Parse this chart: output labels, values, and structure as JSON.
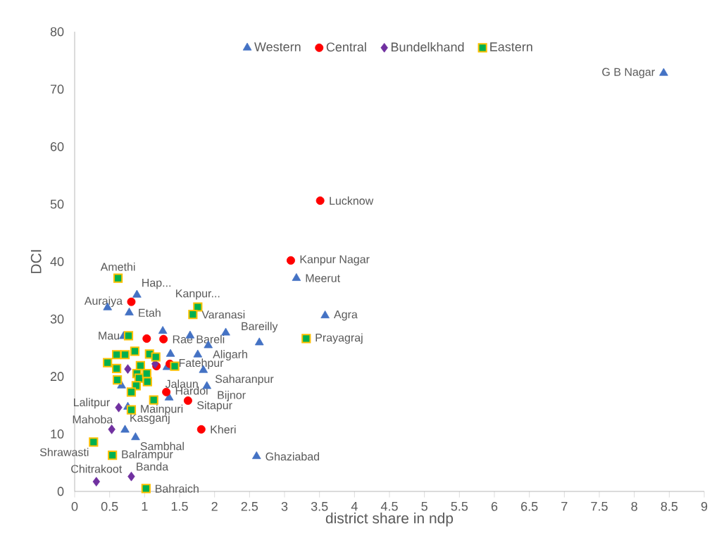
{
  "chart_data": {
    "type": "scatter",
    "xlabel": "district share in ndp",
    "ylabel": "DCI",
    "xlim": [
      0,
      9
    ],
    "ylim": [
      0,
      80
    ],
    "xticks": [
      0,
      0.5,
      1,
      1.5,
      2,
      2.5,
      3,
      3.5,
      4,
      4.5,
      5,
      5.5,
      6,
      6.5,
      7,
      7.5,
      8,
      8.5,
      9
    ],
    "yticks": [
      0,
      10,
      20,
      30,
      40,
      50,
      60,
      70,
      80
    ],
    "legend": "top",
    "series": [
      {
        "name": "Western",
        "color": "#4472c4",
        "marker": "triangle",
        "x": [
          8.42,
          3.17,
          3.58,
          0.89,
          0.47,
          0.78,
          1.91,
          1.84,
          1.89,
          1.35,
          2.6,
          2.64,
          0.72,
          0.87,
          2.16,
          1.76,
          1.37,
          1.26,
          1.65,
          0.7,
          1.32,
          0.67,
          0.76
        ],
        "values": [
          72.8,
          37.1,
          30.6,
          34.2,
          32.0,
          31.1,
          25.4,
          21.1,
          18.3,
          16.3,
          6.1,
          25.9,
          10.7,
          9.4,
          27.6,
          23.8,
          23.9,
          27.9,
          27.1,
          27.0,
          21.6,
          18.4,
          14.7
        ]
      },
      {
        "name": "Central",
        "color": "#ff0000",
        "marker": "circle",
        "x": [
          3.51,
          3.09,
          0.81,
          1.03,
          1.27,
          1.36,
          1.17,
          1.31,
          1.62,
          1.81
        ],
        "values": [
          50.6,
          40.2,
          33.0,
          26.6,
          26.5,
          22.2,
          21.8,
          17.3,
          15.8,
          10.8
        ]
      },
      {
        "name": "Bundelkhand",
        "color": "#7030a0",
        "marker": "diamond",
        "x": [
          0.63,
          0.53,
          0.81,
          0.31,
          0.76,
          1.15
        ],
        "values": [
          14.6,
          10.8,
          2.6,
          1.7,
          21.3,
          22.2
        ]
      },
      {
        "name": "Eastern",
        "color": "#00b050",
        "marker": "square",
        "x": [
          0.62,
          1.76,
          1.69,
          3.31,
          0.77,
          0.54,
          0.27,
          1.02,
          0.81,
          0.6,
          0.72,
          0.86,
          1.07,
          1.16,
          0.47,
          0.6,
          0.61,
          0.94,
          0.89,
          0.92,
          1.03,
          1.04,
          0.88,
          0.81,
          1.13,
          1.43
        ],
        "values": [
          37.1,
          32.1,
          30.8,
          26.6,
          27.1,
          6.3,
          8.6,
          0.5,
          14.2,
          23.8,
          23.8,
          24.4,
          23.9,
          23.4,
          22.4,
          21.4,
          19.4,
          21.9,
          20.5,
          19.7,
          20.5,
          19.1,
          18.4,
          17.3,
          15.9,
          21.8
        ]
      }
    ],
    "annotations": [
      {
        "text": "G B Nagar",
        "x": 8.42,
        "y": 72.8
      },
      {
        "text": "Lucknow",
        "x": 3.51,
        "y": 50.6
      },
      {
        "text": "Kanpur Nagar",
        "x": 3.09,
        "y": 40.2
      },
      {
        "text": "Meerut",
        "x": 3.17,
        "y": 37.1
      },
      {
        "text": "Amethi",
        "x": 0.62,
        "y": 37.1
      },
      {
        "text": "Hap...",
        "x": 0.89,
        "y": 34.2
      },
      {
        "text": "Auraiya",
        "x": 0.81,
        "y": 33.0
      },
      {
        "text": "Kanpur...",
        "x": 1.76,
        "y": 32.1
      },
      {
        "text": "Etah",
        "x": 0.78,
        "y": 31.1
      },
      {
        "text": "Varanasi",
        "x": 1.69,
        "y": 30.8
      },
      {
        "text": "Agra",
        "x": 3.58,
        "y": 30.6
      },
      {
        "text": "Mau",
        "x": 0.77,
        "y": 27.1
      },
      {
        "text": "Prayagraj",
        "x": 3.31,
        "y": 26.6
      },
      {
        "text": "Rae Bareli",
        "x": 1.27,
        "y": 26.5
      },
      {
        "text": "Bareilly",
        "x": 2.64,
        "y": 25.9
      },
      {
        "text": "Aligarh",
        "x": 1.91,
        "y": 25.4
      },
      {
        "text": "Fatehpur",
        "x": 1.36,
        "y": 22.2
      },
      {
        "text": "Saharanpur",
        "x": 1.84,
        "y": 21.1
      },
      {
        "text": "Jalaun",
        "x": 1.15,
        "y": 22.2
      },
      {
        "text": "Bijnor",
        "x": 1.89,
        "y": 18.3
      },
      {
        "text": "Hardoi",
        "x": 1.31,
        "y": 17.3
      },
      {
        "text": "Sitapur",
        "x": 1.62,
        "y": 15.8
      },
      {
        "text": "Mainpuri",
        "x": 0.81,
        "y": 14.2
      },
      {
        "text": "Lalitpur",
        "x": 0.63,
        "y": 14.6
      },
      {
        "text": "Kasganj",
        "x": 0.72,
        "y": 10.7
      },
      {
        "text": "Mahoba",
        "x": 0.53,
        "y": 10.8
      },
      {
        "text": "Kheri",
        "x": 1.81,
        "y": 10.8
      },
      {
        "text": "Sambhal",
        "x": 0.87,
        "y": 9.4
      },
      {
        "text": "Ghaziabad",
        "x": 2.6,
        "y": 6.1
      },
      {
        "text": "Balrampur",
        "x": 0.54,
        "y": 6.3
      },
      {
        "text": "Shrawasti",
        "x": 0.27,
        "y": 8.6
      },
      {
        "text": "Banda",
        "x": 0.81,
        "y": 2.6
      },
      {
        "text": "Chitrakoot",
        "x": 0.31,
        "y": 1.7
      },
      {
        "text": "Bahraich",
        "x": 1.02,
        "y": 0.5
      }
    ]
  }
}
